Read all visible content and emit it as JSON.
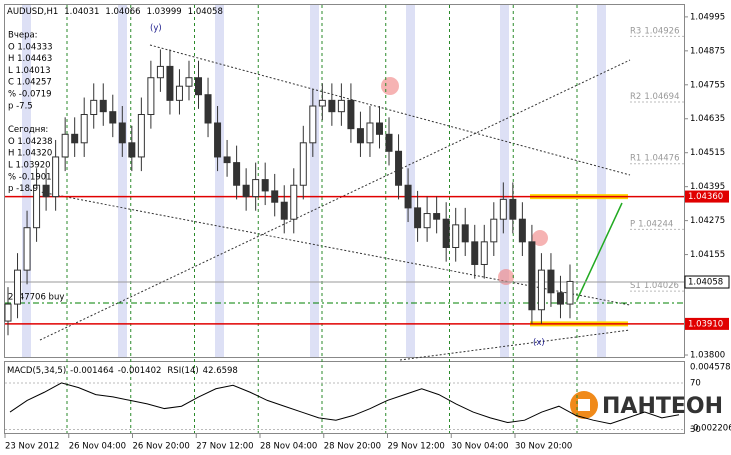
{
  "chart_data": {
    "type": "candlestick",
    "symbol": "AUDUSD,H1",
    "quote": [
      1.04031,
      1.04066,
      1.03999,
      1.04058
    ],
    "info": [
      "Вчера:",
      "O 1.04333",
      "H 1.04463",
      "L 1.04013",
      "C 1.04257",
      "% -0.0719",
      "p -7.5",
      "Сегодня:",
      "O 1.04238",
      "H 1.04320",
      "L 1.03920",
      "% -0.1901",
      "p -18.9"
    ],
    "categories": [
      "23 Nov 2012",
      "26 Nov 04:00",
      "26 Nov 20:00",
      "27 Nov 12:00",
      "28 Nov 04:00",
      "28 Nov 20:00",
      "29 Nov 12:00",
      "30 Nov 04:00",
      "30 Nov 20:00"
    ],
    "ylim": [
      1.03793,
      1.05037
    ],
    "yticks": [
      1.04995,
      1.04875,
      1.04755,
      1.04635,
      1.04515,
      1.04395,
      1.04275,
      1.04155,
      {
        "value": 1.038,
        "label": "1.03800"
      }
    ],
    "open": [
      1.0392,
      1.0398,
      1.041,
      1.0425,
      1.044,
      1.0436,
      1.045,
      1.0458,
      1.0455,
      1.0465,
      1.047,
      1.0466,
      1.0462,
      1.0455,
      1.045,
      1.0465,
      1.0478,
      1.0482,
      1.047,
      1.0475,
      1.0478,
      1.0472,
      1.0462,
      1.045,
      1.0448,
      1.044,
      1.0436,
      1.0442,
      1.0438,
      1.0434,
      1.0428,
      1.044,
      1.0455,
      1.0468,
      1.047,
      1.0466,
      1.047,
      1.046,
      1.0455,
      1.0462,
      1.0458,
      1.0452,
      1.044,
      1.0432,
      1.0425,
      1.043,
      1.0428,
      1.0418,
      1.0426,
      1.042,
      1.0412,
      1.042,
      1.0428,
      1.0435,
      1.0428,
      1.042,
      1.0396,
      1.041,
      1.0402,
      1.0398
    ],
    "high": [
      1.0404,
      1.0416,
      1.0431,
      1.0446,
      1.0446,
      1.0456,
      1.0464,
      1.0464,
      1.0471,
      1.0476,
      1.0476,
      1.0472,
      1.0468,
      1.0461,
      1.0471,
      1.0484,
      1.0488,
      1.0488,
      1.0481,
      1.0484,
      1.0484,
      1.0478,
      1.0468,
      1.0456,
      1.0454,
      1.0446,
      1.0448,
      1.0448,
      1.0444,
      1.044,
      1.0446,
      1.0461,
      1.0474,
      1.0476,
      1.0476,
      1.0476,
      1.0476,
      1.0466,
      1.0468,
      1.0468,
      1.0464,
      1.0458,
      1.0446,
      1.0438,
      1.0436,
      1.0436,
      1.0434,
      1.0432,
      1.0432,
      1.0426,
      1.0426,
      1.0434,
      1.0441,
      1.0441,
      1.0434,
      1.0426,
      1.0416,
      1.0416,
      1.0408,
      1.0412
    ],
    "low": [
      1.0387,
      1.0393,
      1.0405,
      1.042,
      1.0431,
      1.0431,
      1.0445,
      1.045,
      1.045,
      1.046,
      1.0461,
      1.0457,
      1.045,
      1.0445,
      1.0445,
      1.046,
      1.0473,
      1.0465,
      1.0465,
      1.047,
      1.0467,
      1.0457,
      1.0445,
      1.0443,
      1.0435,
      1.0431,
      1.0431,
      1.0433,
      1.0429,
      1.0423,
      1.0423,
      1.0435,
      1.045,
      1.0463,
      1.0461,
      1.0461,
      1.0455,
      1.045,
      1.045,
      1.0453,
      1.0447,
      1.0435,
      1.0427,
      1.042,
      1.042,
      1.0423,
      1.0413,
      1.0413,
      1.0415,
      1.0407,
      1.0407,
      1.0415,
      1.0423,
      1.0423,
      1.0415,
      1.0391,
      1.0391,
      1.0397,
      1.0393,
      1.0393
    ],
    "close": [
      1.0398,
      1.041,
      1.0425,
      1.044,
      1.0436,
      1.045,
      1.0458,
      1.0455,
      1.0465,
      1.047,
      1.0466,
      1.0462,
      1.0455,
      1.045,
      1.0465,
      1.0478,
      1.0482,
      1.047,
      1.0475,
      1.0478,
      1.0472,
      1.0462,
      1.045,
      1.0448,
      1.044,
      1.0436,
      1.0442,
      1.0438,
      1.0434,
      1.0428,
      1.044,
      1.0455,
      1.0468,
      1.047,
      1.0466,
      1.047,
      1.046,
      1.0455,
      1.0462,
      1.0458,
      1.0452,
      1.044,
      1.0432,
      1.0425,
      1.043,
      1.0428,
      1.0418,
      1.0426,
      1.042,
      1.0412,
      1.042,
      1.0428,
      1.0435,
      1.0428,
      1.042,
      1.0396,
      1.041,
      1.0402,
      1.0398,
      1.0406
    ],
    "levels": [
      {
        "value": 1.0436,
        "label": "1.04360",
        "color": "#e00000"
      },
      {
        "value": 1.0391,
        "label": "1.03910",
        "color": "#e00000"
      }
    ],
    "current": {
      "value": 1.04058,
      "color": "#9a9a9a"
    },
    "order": {
      "label": "2247706 buy",
      "value": 1.03984,
      "color": "#008000"
    },
    "pivots": [
      {
        "name": "R3",
        "value": 1.04926
      },
      {
        "name": "R2",
        "value": 1.04694
      },
      {
        "name": "R1",
        "value": 1.04476
      },
      {
        "name": "P",
        "value": 1.04244
      },
      {
        "name": "S1",
        "value": 1.04026
      }
    ],
    "annotations": [
      {
        "text": "(y)",
        "value": 1.04955
      },
      {
        "text": "(x)",
        "value": 1.03845
      }
    ],
    "macd": {
      "name": "MACD(5,34,5)",
      "values": [
        -0.001464,
        -0.001402
      ],
      "ticks": [
        0.004578,
        -0.002206
      ]
    },
    "rsi": {
      "name": "RSI(14)",
      "ylim": [
        27,
        88
      ],
      "yticks": [
        70,
        30
      ],
      "color": "#000000",
      "values": [
        45,
        55,
        62,
        70,
        66,
        60,
        58,
        55,
        52,
        48,
        50,
        58,
        65,
        68,
        62,
        55,
        50,
        45,
        40,
        38,
        42,
        48,
        55,
        60,
        65,
        60,
        52,
        45,
        40,
        36,
        38,
        45,
        50,
        42,
        38,
        35,
        40,
        45,
        40,
        42.6598
      ]
    },
    "brand": "ПАНТЕОН"
  }
}
